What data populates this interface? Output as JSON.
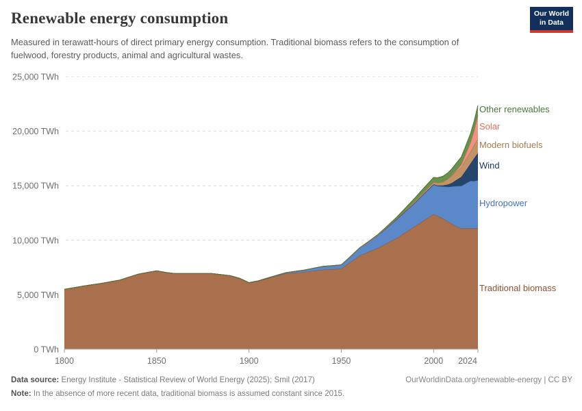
{
  "header": {
    "title": "Renewable energy consumption",
    "subtitle": "Measured in terawatt-hours of direct primary energy consumption. Traditional biomass refers to the consumption of fuelwood, forestry products, animal and agricultural wastes.",
    "logo": {
      "line1": "Our World",
      "line2": "in Data",
      "bg_color": "#12305B",
      "stripe_color": "#D2392B"
    }
  },
  "footer": {
    "source_label": "Data source:",
    "source_text": "Energy Institute - Statistical Review of World Energy (2025); Smil (2017)",
    "right_text": "OurWorldinData.org/renewable-energy | CC BY",
    "note_label": "Note:",
    "note_text": "In the absence of more recent data, traditional biomass is assumed constant since 2015."
  },
  "colors": {
    "grid": "#DCDCDC",
    "axis_text": "#6E6E6E",
    "baseline": "#C8C8C8",
    "tick": "#9A9A9A"
  },
  "chart_data": {
    "type": "area",
    "stacked": true,
    "title": "Renewable energy consumption",
    "unit": "TWh",
    "xlabel": "",
    "ylabel": "TWh",
    "xlim": [
      1800,
      2024
    ],
    "ylim": [
      0,
      25000
    ],
    "grid": "dashed-horizontal",
    "legend_position": "right",
    "x_ticks": [
      {
        "value": 1800,
        "label": "1800"
      },
      {
        "value": 1850,
        "label": "1850"
      },
      {
        "value": 1900,
        "label": "1900"
      },
      {
        "value": 1950,
        "label": "1950"
      },
      {
        "value": 2000,
        "label": "2000"
      },
      {
        "value": 2024,
        "label": "2024"
      }
    ],
    "y_ticks": [
      {
        "value": 0,
        "label": "0 TWh"
      },
      {
        "value": 5000,
        "label": "5,000 TWh"
      },
      {
        "value": 10000,
        "label": "10,000 TWh"
      },
      {
        "value": 15000,
        "label": "15,000 TWh"
      },
      {
        "value": 20000,
        "label": "20,000 TWh"
      },
      {
        "value": 25000,
        "label": "25,000 TWh"
      }
    ],
    "years": [
      1800,
      1810,
      1820,
      1830,
      1840,
      1845,
      1850,
      1855,
      1860,
      1870,
      1880,
      1890,
      1895,
      1900,
      1905,
      1910,
      1920,
      1930,
      1940,
      1945,
      1950,
      1955,
      1960,
      1965,
      1970,
      1975,
      1980,
      1985,
      1990,
      1995,
      2000,
      2002,
      2005,
      2008,
      2010,
      2012,
      2015,
      2018,
      2020,
      2022,
      2024
    ],
    "series": [
      {
        "name": "traditional-biomass",
        "label": "Traditional biomass",
        "fill": "#A9704E",
        "line": "#83573C",
        "label_color": "#8C5130",
        "values": [
          5500,
          5800,
          6050,
          6350,
          6900,
          7050,
          7200,
          7050,
          6950,
          6950,
          6950,
          6750,
          6500,
          6100,
          6250,
          6500,
          6950,
          7100,
          7300,
          7350,
          7400,
          8000,
          8600,
          8950,
          9300,
          9750,
          10200,
          10750,
          11300,
          11850,
          12400,
          12250,
          12000,
          11700,
          11500,
          11300,
          11100,
          11100,
          11100,
          11100,
          11100
        ]
      },
      {
        "name": "hydropower",
        "label": "Hydropower",
        "fill": "#5B88C9",
        "line": "#41699E",
        "label_color": "#4370C4",
        "values": [
          0,
          0,
          0,
          0,
          0,
          0,
          0,
          0,
          0,
          0,
          0,
          5,
          10,
          15,
          30,
          45,
          85,
          170,
          300,
          320,
          340,
          500,
          690,
          920,
          1180,
          1450,
          1730,
          1950,
          2160,
          2460,
          2700,
          2730,
          2930,
          3200,
          3430,
          3670,
          3880,
          4170,
          4350,
          4330,
          4410
        ]
      },
      {
        "name": "wind",
        "label": "Wind",
        "fill": "#26456B",
        "line": "#1A3253",
        "label_color": "#16335A",
        "values": [
          0,
          0,
          0,
          0,
          0,
          0,
          0,
          0,
          0,
          0,
          0,
          0,
          0,
          0,
          0,
          0,
          0,
          0,
          0,
          0,
          0,
          0,
          0,
          0,
          0,
          0,
          0,
          0,
          4,
          8,
          31,
          52,
          104,
          220,
          340,
          520,
          830,
          1270,
          1590,
          2100,
          2490
        ]
      },
      {
        "name": "modern-biofuels",
        "label": "Modern biofuels",
        "fill": "#C29366",
        "line": "#99734C",
        "label_color": "#A57C4F",
        "values": [
          0,
          0,
          0,
          0,
          0,
          0,
          0,
          0,
          0,
          0,
          0,
          0,
          0,
          0,
          0,
          0,
          0,
          0,
          0,
          0,
          0,
          0,
          0,
          5,
          10,
          25,
          50,
          80,
          110,
          150,
          190,
          230,
          310,
          540,
          680,
          780,
          870,
          1020,
          1080,
          1220,
          1300
        ]
      },
      {
        "name": "solar",
        "label": "Solar",
        "fill": "#F2917F",
        "line": "#CC6A57",
        "label_color": "#E56E5A",
        "values": [
          0,
          0,
          0,
          0,
          0,
          0,
          0,
          0,
          0,
          0,
          0,
          0,
          0,
          0,
          0,
          0,
          0,
          0,
          0,
          0,
          0,
          0,
          0,
          0,
          0,
          0,
          0,
          0,
          0,
          0,
          1,
          2,
          4,
          12,
          34,
          100,
          260,
          580,
          850,
          1320,
          2130
        ]
      },
      {
        "name": "other-renewables",
        "label": "Other renewables",
        "fill": "#69924F",
        "line": "#4C7139",
        "label_color": "#477A38",
        "values": [
          0,
          0,
          0,
          0,
          0,
          0,
          0,
          0,
          0,
          0,
          0,
          0,
          0,
          0,
          0,
          0,
          0,
          5,
          10,
          12,
          20,
          25,
          35,
          50,
          70,
          105,
          150,
          230,
          330,
          390,
          450,
          470,
          520,
          560,
          600,
          650,
          700,
          780,
          830,
          890,
          950
        ]
      }
    ]
  }
}
